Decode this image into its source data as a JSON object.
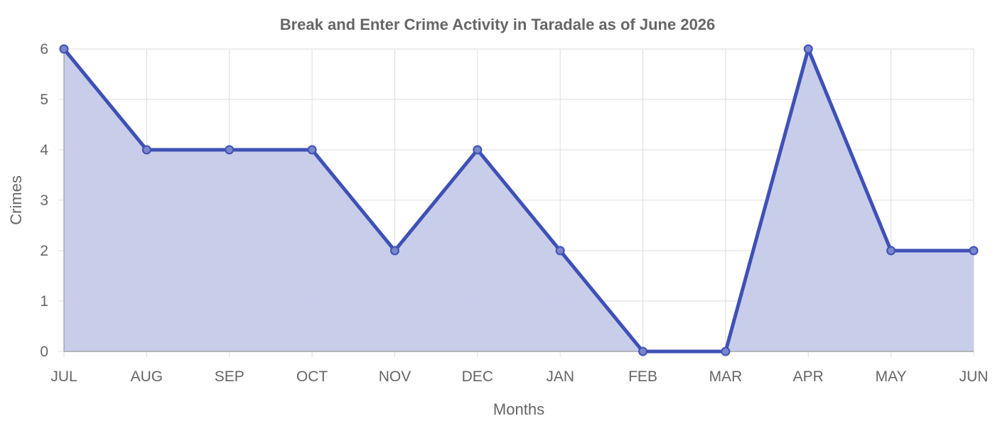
{
  "chart_data": {
    "type": "area",
    "title": "Break and Enter Crime Activity in Taradale as of June 2026",
    "xlabel": "Months",
    "ylabel": "Crimes",
    "categories": [
      "JUL",
      "AUG",
      "SEP",
      "OCT",
      "NOV",
      "DEC",
      "JAN",
      "FEB",
      "MAR",
      "APR",
      "MAY",
      "JUN"
    ],
    "series": [
      {
        "values": [
          6,
          4,
          4,
          4,
          2,
          4,
          2,
          0,
          0,
          6,
          2,
          2
        ]
      }
    ],
    "ylim": [
      0,
      6
    ],
    "yticks": [
      0,
      1,
      2,
      3,
      4,
      5,
      6
    ],
    "grid": true,
    "legend": "none",
    "colors": {
      "line": "#3f51b5",
      "fill": "#c5cae9",
      "marker_fill": "#7986cb"
    }
  }
}
